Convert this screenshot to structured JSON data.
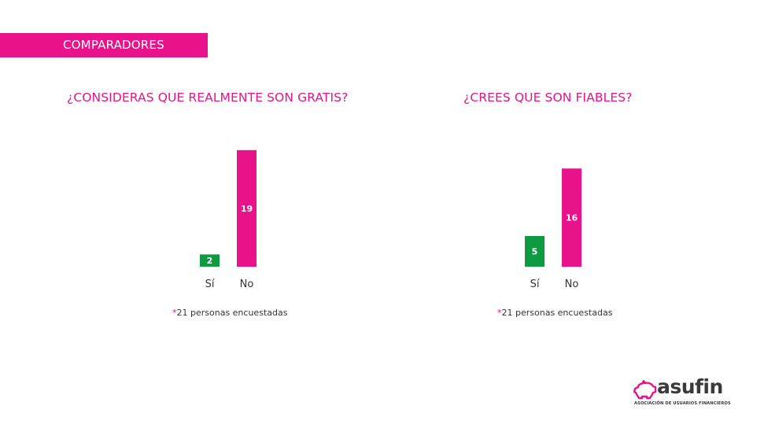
{
  "section": {
    "label": "COMPARADORES"
  },
  "colors": {
    "accent": "#e8138b",
    "yes": "#0e9a40",
    "no": "#e8138b",
    "text": "#333333"
  },
  "charts": [
    {
      "title": "¿CONSIDERAS QUE REALMENTE SON GRATIS?",
      "footnote_star": "*",
      "footnote": "21 personas encuestadas"
    },
    {
      "title": "¿CREES QUE SON FIABLES?",
      "footnote_star": "*",
      "footnote": "21 personas encuestadas"
    }
  ],
  "chart_data": [
    {
      "type": "bar",
      "title": "¿CONSIDERAS QUE REALMENTE SON GRATIS?",
      "categories": [
        "Sí",
        "No"
      ],
      "values": [
        2,
        19
      ],
      "colors": [
        "#0e9a40",
        "#e8138b"
      ],
      "data_labels": true,
      "grid": false,
      "axes_visible": false,
      "note": "*21 personas encuestadas"
    },
    {
      "type": "bar",
      "title": "¿CREES QUE SON FIABLES?",
      "categories": [
        "Sí",
        "No"
      ],
      "values": [
        5,
        16
      ],
      "colors": [
        "#0e9a40",
        "#e8138b"
      ],
      "data_labels": true,
      "grid": false,
      "axes_visible": false,
      "note": "*21 personas encuestadas"
    }
  ],
  "logo": {
    "brand": "asufin",
    "tagline": "ASOCIACIÓN DE USUARIOS FINANCIEROS",
    "icon": "piggy-bank-icon"
  }
}
